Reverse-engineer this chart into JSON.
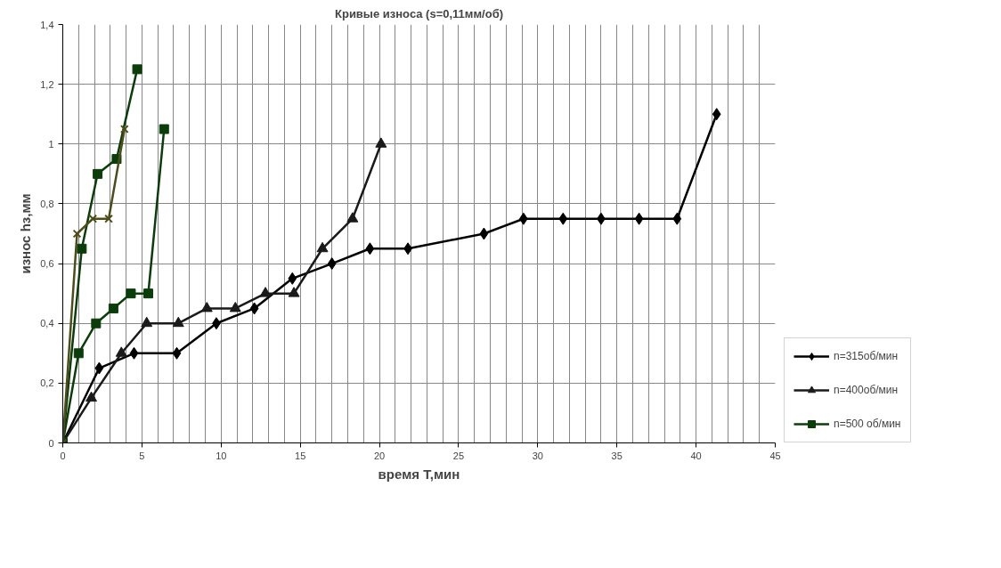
{
  "chart_data": {
    "type": "line",
    "title": "Кривые износа (s=0,11мм/об)",
    "xlabel": "время Т,мин",
    "ylabel": "износ hз,мм",
    "xlim": [
      0,
      45
    ],
    "xticks": [
      0,
      5,
      10,
      15,
      20,
      25,
      30,
      35,
      40,
      45
    ],
    "ylim": [
      0,
      1.4
    ],
    "yticks": [
      0,
      {
        "value": 0.2,
        "label": "0,2"
      },
      {
        "value": 0.4,
        "label": "0,4"
      },
      {
        "value": 0.6,
        "label": "0,6"
      },
      {
        "value": 0.8,
        "label": "0,8"
      },
      1,
      {
        "value": 1.2,
        "label": "1,2"
      },
      {
        "value": 1.4,
        "label": "1,4"
      }
    ],
    "grid": true,
    "legend": "right",
    "line_style": "solid",
    "series": [
      {
        "name": "n=315об/мин",
        "color": "#000000",
        "marker": "diamond",
        "x": [
          0,
          2.3,
          4.5,
          7.2,
          9.7,
          12.1,
          14.5,
          17.0,
          19.4,
          21.8,
          26.6,
          29.1,
          31.6,
          34.0,
          36.4,
          38.8,
          41.3
        ],
        "values": [
          0,
          0.25,
          0.3,
          0.3,
          0.4,
          0.45,
          0.55,
          0.6,
          0.65,
          0.65,
          0.7,
          0.75,
          0.75,
          0.75,
          0.75,
          0.75,
          1.1
        ]
      },
      {
        "name": "n=400об/мин",
        "color": "#1a1a1a",
        "marker": "triangle",
        "x": [
          0,
          1.8,
          3.7,
          5.3,
          7.3,
          9.1,
          10.9,
          12.8,
          14.6,
          16.4,
          18.3,
          20.1
        ],
        "values": [
          0,
          0.15,
          0.3,
          0.4,
          0.4,
          0.45,
          0.45,
          0.5,
          0.5,
          0.65,
          0.75,
          1.0
        ]
      },
      {
        "name": "n=500 об/мин",
        "color": "#0b3d0b",
        "marker": "square",
        "x": [
          0,
          1.0,
          2.1,
          3.2,
          4.3,
          5.4,
          6.4
        ],
        "values": [
          0,
          0.3,
          0.4,
          0.45,
          0.5,
          0.5,
          1.05
        ]
      },
      {
        "color": "#0b3d0b",
        "marker": "square",
        "x": [
          0,
          1.2,
          2.2,
          3.4,
          4.7
        ],
        "values": [
          0,
          0.65,
          0.9,
          0.95,
          1.25
        ]
      },
      {
        "color": "#4d4d1a",
        "marker": "cross",
        "x": [
          0,
          0.9,
          1.9,
          2.9,
          3.9
        ],
        "values": [
          0,
          0.7,
          0.75,
          0.75,
          1.05
        ]
      }
    ]
  }
}
